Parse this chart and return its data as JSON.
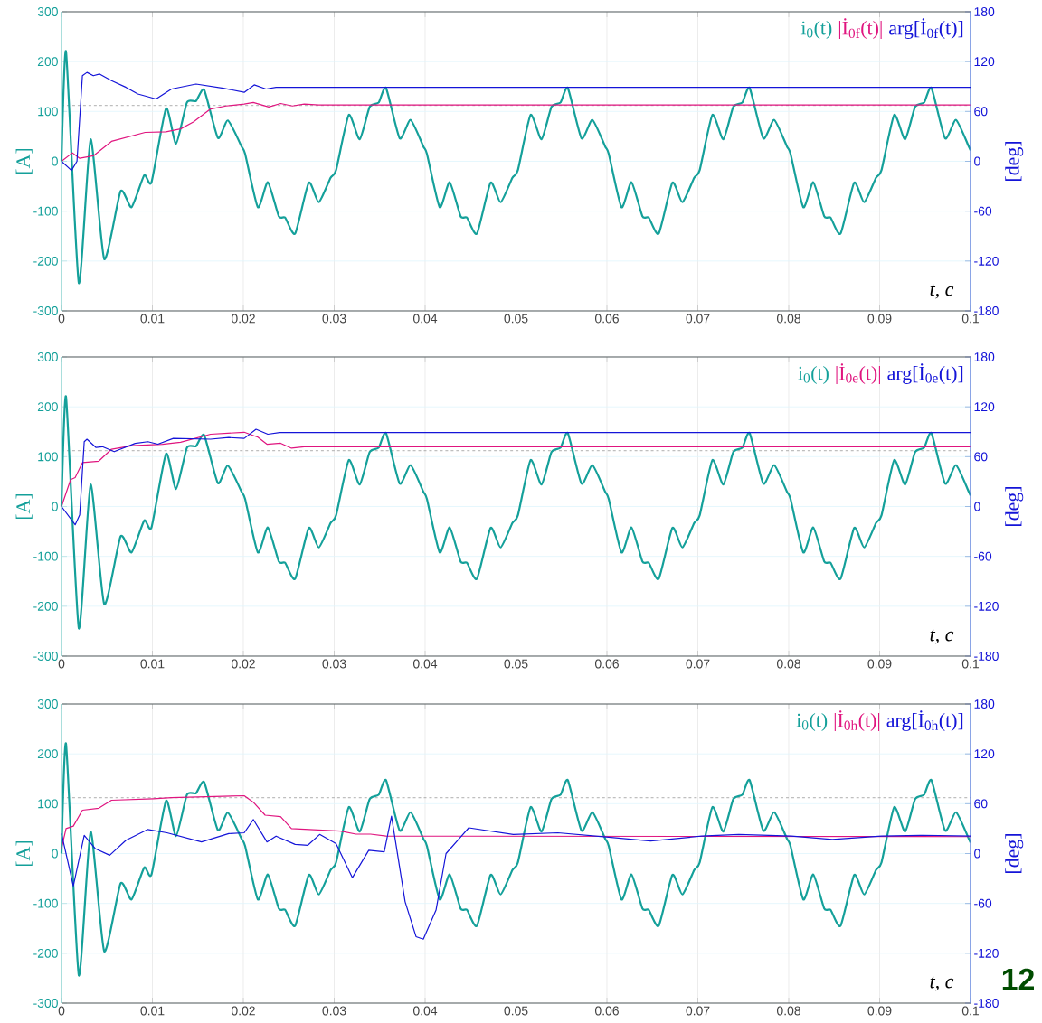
{
  "chart_data": [
    {
      "type": "line",
      "xlabel": "t, c",
      "ylabel": "[A]",
      "y2label": "[deg]",
      "xlim": [
        0,
        0.1
      ],
      "xticks": [
        0,
        0.01,
        0.02,
        0.03,
        0.04,
        0.05,
        0.06,
        0.07,
        0.08,
        0.09,
        0.1
      ],
      "ylim": [
        -300,
        300
      ],
      "yticks": [
        -300,
        -200,
        -100,
        0,
        100,
        200,
        300
      ],
      "y2lim": [
        -180,
        180
      ],
      "y2ticks": [
        -180,
        -120,
        -60,
        0,
        60,
        120,
        180
      ],
      "grid": true,
      "legend": "top right",
      "ref_lines": [
        {
          "axis": "y",
          "value": 112,
          "color": "#999999",
          "line_style": "dashed"
        }
      ],
      "series": [
        {
          "name": "i$_{0}$(t)",
          "color": "#14a09a",
          "x": [
            0,
            0.0005,
            0.0019,
            0.0032,
            0.0047,
            0.0065,
            0.0077,
            0.0091,
            0.0099,
            0.0115,
            0.0126,
            0.0138,
            0.0148,
            0.0157,
            0.0172,
            0.0183,
            0.0198,
            0.0202,
            0.0216,
            0.0227,
            0.0239,
            0.0246,
            0.0257,
            0.0272,
            0.0283,
            0.0296,
            0.0302,
            0.0316,
            0.0328,
            0.0339,
            0.0349,
            0.0357,
            0.0372,
            0.0384,
            0.0398,
            0.0402,
            0.0416,
            0.0427,
            0.0439,
            0.0446,
            0.0457,
            0.0472,
            0.0483,
            0.0496,
            0.0502,
            0.0516,
            0.0528,
            0.0539,
            0.0549,
            0.0557,
            0.0572,
            0.0584,
            0.0598,
            0.0602,
            0.0616,
            0.0627,
            0.0639,
            0.0646,
            0.0657,
            0.0672,
            0.0683,
            0.0696,
            0.0702,
            0.0716,
            0.0728,
            0.0739,
            0.0749,
            0.0757,
            0.0772,
            0.0784,
            0.0798,
            0.0802,
            0.0816,
            0.0827,
            0.0839,
            0.0846,
            0.0857,
            0.0872,
            0.0883,
            0.0896,
            0.0902,
            0.0916,
            0.0928,
            0.0939,
            0.0949,
            0.0957,
            0.0972,
            0.0984,
            0.0998,
            0.1
          ],
          "values": [
            0,
            220,
            -244,
            44,
            -196,
            -60,
            -92,
            -28,
            -42,
            106,
            35,
            118,
            121,
            143,
            47,
            82,
            30,
            15,
            -92,
            -42,
            -110,
            -113,
            -145,
            -43,
            -82,
            -33,
            -18,
            93,
            44,
            109,
            118,
            147,
            46,
            83,
            30,
            15,
            -92,
            -42,
            -110,
            -113,
            -145,
            -43,
            -82,
            -33,
            -18,
            93,
            44,
            109,
            118,
            147,
            46,
            83,
            30,
            15,
            -92,
            -42,
            -110,
            -113,
            -145,
            -43,
            -82,
            -33,
            -18,
            93,
            44,
            109,
            118,
            147,
            46,
            83,
            30,
            15,
            -92,
            -42,
            -110,
            -113,
            -145,
            -43,
            -82,
            -33,
            -18,
            93,
            44,
            109,
            118,
            147,
            46,
            83,
            30,
            22
          ]
        },
        {
          "name": "|İ$_{0f}$(t)|",
          "color": "#e0157f",
          "x": [
            0,
            0.0012,
            0.002,
            0.0035,
            0.0055,
            0.0092,
            0.0115,
            0.0131,
            0.0145,
            0.0164,
            0.0181,
            0.0201,
            0.0211,
            0.0228,
            0.0241,
            0.0254,
            0.0267,
            0.0283,
            0.1
          ],
          "values": [
            0,
            17,
            6,
            11,
            40,
            58,
            59,
            65,
            79,
            105,
            111,
            115,
            118,
            109,
            116,
            111,
            115,
            113,
            113
          ]
        },
        {
          "name": "arg[İ$_{0f}$(t)]",
          "color": "#1414d8",
          "axis": "y2",
          "x": [
            0,
            0.0011,
            0.0017,
            0.0023,
            0.0028,
            0.0035,
            0.0042,
            0.0055,
            0.0071,
            0.0084,
            0.0104,
            0.0121,
            0.0148,
            0.0178,
            0.0201,
            0.0212,
            0.0225,
            0.0236,
            0.0266,
            0.1
          ],
          "values": [
            0,
            -11,
            0,
            103,
            107,
            103,
            105,
            97,
            89,
            81,
            75,
            87,
            93,
            88,
            83,
            92,
            87,
            89,
            89,
            89
          ]
        }
      ]
    },
    {
      "type": "line",
      "xlabel": "t, c",
      "ylabel": "[A]",
      "y2label": "[deg]",
      "xlim": [
        0,
        0.1
      ],
      "xticks": [
        0,
        0.01,
        0.02,
        0.03,
        0.04,
        0.05,
        0.06,
        0.07,
        0.08,
        0.09,
        0.1
      ],
      "ylim": [
        -300,
        300
      ],
      "yticks": [
        -300,
        -200,
        -100,
        0,
        100,
        200,
        300
      ],
      "y2lim": [
        -180,
        180
      ],
      "y2ticks": [
        -180,
        -120,
        -60,
        0,
        60,
        120,
        180
      ],
      "grid": true,
      "legend": "top right",
      "ref_lines": [
        {
          "axis": "y",
          "value": 112,
          "color": "#999999",
          "line_style": "dashed"
        }
      ],
      "series": [
        {
          "name": "i$_{0}$(t)",
          "color": "#14a09a",
          "x": [
            0,
            0.0005,
            0.0019,
            0.0032,
            0.0047,
            0.0065,
            0.0077,
            0.0091,
            0.0099,
            0.0115,
            0.0126,
            0.0138,
            0.0148,
            0.0157,
            0.0172,
            0.0183,
            0.0198,
            0.0202,
            0.0216,
            0.0227,
            0.0239,
            0.0246,
            0.0257,
            0.0272,
            0.0283,
            0.0296,
            0.0302,
            0.0316,
            0.0328,
            0.0339,
            0.0349,
            0.0357,
            0.0372,
            0.0384,
            0.0398,
            0.0402,
            0.0416,
            0.0427,
            0.0439,
            0.0446,
            0.0457,
            0.0472,
            0.0483,
            0.0496,
            0.0502,
            0.0516,
            0.0528,
            0.0539,
            0.0549,
            0.0557,
            0.0572,
            0.0584,
            0.0598,
            0.0602,
            0.0616,
            0.0627,
            0.0639,
            0.0646,
            0.0657,
            0.0672,
            0.0683,
            0.0696,
            0.0702,
            0.0716,
            0.0728,
            0.0739,
            0.0749,
            0.0757,
            0.0772,
            0.0784,
            0.0798,
            0.0802,
            0.0816,
            0.0827,
            0.0839,
            0.0846,
            0.0857,
            0.0872,
            0.0883,
            0.0896,
            0.0902,
            0.0916,
            0.0928,
            0.0939,
            0.0949,
            0.0957,
            0.0972,
            0.0984,
            0.0998,
            0.1
          ],
          "values": [
            0,
            220,
            -244,
            44,
            -196,
            -60,
            -92,
            -28,
            -42,
            106,
            35,
            118,
            121,
            143,
            47,
            82,
            30,
            15,
            -92,
            -42,
            -110,
            -113,
            -145,
            -43,
            -82,
            -33,
            -18,
            93,
            44,
            109,
            118,
            147,
            46,
            83,
            30,
            15,
            -92,
            -42,
            -110,
            -113,
            -145,
            -43,
            -82,
            -33,
            -18,
            93,
            44,
            109,
            118,
            147,
            46,
            83,
            30,
            15,
            -92,
            -42,
            -110,
            -113,
            -145,
            -43,
            -82,
            -33,
            -18,
            93,
            44,
            109,
            118,
            147,
            46,
            83,
            30,
            15,
            -92,
            -42,
            -110,
            -113,
            -145,
            -43,
            -82,
            -33,
            -18,
            93,
            44,
            109,
            118,
            147,
            46,
            83,
            30,
            22
          ]
        },
        {
          "name": "|İ$_{0e}$(t)|",
          "color": "#e0157f",
          "x": [
            0,
            0.001,
            0.0015,
            0.0023,
            0.0041,
            0.0055,
            0.0078,
            0.0111,
            0.0131,
            0.0164,
            0.0201,
            0.0207,
            0.0216,
            0.0226,
            0.0241,
            0.0253,
            0.0267,
            0.1
          ],
          "values": [
            0,
            54,
            58,
            88,
            91,
            115,
            122,
            125,
            129,
            145,
            149,
            145,
            139,
            125,
            127,
            117,
            120,
            120
          ]
        },
        {
          "name": "arg[İ$_{0e}$(t)]",
          "color": "#1414d8",
          "axis": "y2",
          "x": [
            0,
            0.0015,
            0.002,
            0.0025,
            0.0028,
            0.0038,
            0.0045,
            0.0058,
            0.0081,
            0.0095,
            0.0106,
            0.0123,
            0.0164,
            0.0184,
            0.0201,
            0.0214,
            0.0227,
            0.024,
            0.1
          ],
          "values": [
            0,
            -22,
            -10,
            78,
            81,
            71,
            72,
            66,
            76,
            78,
            75,
            82,
            81,
            83,
            82,
            93,
            87,
            89,
            89
          ]
        }
      ]
    },
    {
      "type": "line",
      "xlabel": "t, c",
      "ylabel": "[A]",
      "y2label": "[deg]",
      "xlim": [
        0,
        0.1
      ],
      "xticks": [
        0,
        0.01,
        0.02,
        0.03,
        0.04,
        0.05,
        0.06,
        0.07,
        0.08,
        0.09,
        0.1
      ],
      "ylim": [
        -300,
        300
      ],
      "yticks": [
        -300,
        -200,
        -100,
        0,
        100,
        200,
        300
      ],
      "y2lim": [
        -180,
        180
      ],
      "y2ticks": [
        -180,
        -120,
        -60,
        0,
        60,
        120,
        180
      ],
      "grid": true,
      "legend": "top right",
      "annotations": [
        "12"
      ],
      "ref_lines": [
        {
          "axis": "y",
          "value": 112,
          "color": "#999999",
          "line_style": "dashed"
        }
      ],
      "series": [
        {
          "name": "i$_{0}$(t)",
          "color": "#14a09a",
          "x": [
            0,
            0.0005,
            0.0019,
            0.0032,
            0.0047,
            0.0065,
            0.0077,
            0.0091,
            0.0099,
            0.0115,
            0.0126,
            0.0138,
            0.0148,
            0.0157,
            0.0172,
            0.0183,
            0.0198,
            0.0202,
            0.0216,
            0.0227,
            0.0239,
            0.0246,
            0.0257,
            0.0272,
            0.0283,
            0.0296,
            0.0302,
            0.0316,
            0.0328,
            0.0339,
            0.0349,
            0.0357,
            0.0372,
            0.0384,
            0.0398,
            0.0402,
            0.0416,
            0.0427,
            0.0439,
            0.0446,
            0.0457,
            0.0472,
            0.0483,
            0.0496,
            0.0502,
            0.0516,
            0.0528,
            0.0539,
            0.0549,
            0.0557,
            0.0572,
            0.0584,
            0.0598,
            0.0602,
            0.0616,
            0.0627,
            0.0639,
            0.0646,
            0.0657,
            0.0672,
            0.0683,
            0.0696,
            0.0702,
            0.0716,
            0.0728,
            0.0739,
            0.0749,
            0.0757,
            0.0772,
            0.0784,
            0.0798,
            0.0802,
            0.0816,
            0.0827,
            0.0839,
            0.0846,
            0.0857,
            0.0872,
            0.0883,
            0.0896,
            0.0902,
            0.0916,
            0.0928,
            0.0939,
            0.0949,
            0.0957,
            0.0972,
            0.0984,
            0.0998,
            0.1
          ],
          "values": [
            0,
            220,
            -244,
            44,
            -196,
            -60,
            -92,
            -28,
            -42,
            106,
            35,
            118,
            121,
            143,
            47,
            82,
            30,
            15,
            -92,
            -42,
            -110,
            -113,
            -145,
            -43,
            -82,
            -33,
            -18,
            93,
            44,
            109,
            118,
            147,
            46,
            83,
            30,
            15,
            -92,
            -42,
            -110,
            -113,
            -145,
            -43,
            -82,
            -33,
            -18,
            93,
            44,
            109,
            118,
            147,
            46,
            83,
            30,
            15,
            -92,
            -42,
            -110,
            -113,
            -145,
            -43,
            -82,
            -33,
            -18,
            93,
            44,
            109,
            118,
            147,
            46,
            83,
            30,
            15,
            -92,
            -42,
            -110,
            -113,
            -145,
            -43,
            -82,
            -33,
            -18,
            93,
            44,
            109,
            118,
            147,
            46,
            83,
            30,
            22
          ]
        },
        {
          "name": "|İ$_{0h}$(t)|",
          "color": "#e0157f",
          "x": [
            0,
            0.0005,
            0.0013,
            0.0023,
            0.0041,
            0.0055,
            0.0101,
            0.0121,
            0.0201,
            0.0211,
            0.0224,
            0.0241,
            0.0253,
            0.0307,
            0.0324,
            0.034,
            0.0357,
            0.1
          ],
          "values": [
            10,
            50,
            55,
            87,
            91,
            107,
            110,
            112,
            116,
            103,
            77,
            74,
            50,
            45,
            39,
            39,
            35,
            34
          ]
        },
        {
          "name": "arg[İ$_{0h}$(t)]",
          "color": "#1414d8",
          "axis": "y2",
          "x": [
            0,
            0.0013,
            0.0025,
            0.0037,
            0.0053,
            0.0071,
            0.0095,
            0.0116,
            0.0154,
            0.0184,
            0.0201,
            0.0211,
            0.0226,
            0.0236,
            0.0257,
            0.0271,
            0.0284,
            0.0302,
            0.032,
            0.0338,
            0.0355,
            0.0363,
            0.0378,
            0.039,
            0.0398,
            0.0412,
            0.0423,
            0.0448,
            0.0497,
            0.0546,
            0.0599,
            0.0648,
            0.0704,
            0.0745,
            0.0803,
            0.0848,
            0.0902,
            0.0947,
            0.1
          ],
          "values": [
            24,
            -39,
            22,
            6,
            -2,
            16,
            29,
            25,
            14,
            24,
            25,
            41,
            14,
            21,
            11,
            10,
            23,
            12,
            -29,
            4,
            2,
            45,
            -58,
            -100,
            -103,
            -68,
            0,
            31,
            23,
            25,
            20,
            15,
            21,
            23,
            21,
            17,
            21,
            22,
            21
          ]
        }
      ]
    }
  ]
}
